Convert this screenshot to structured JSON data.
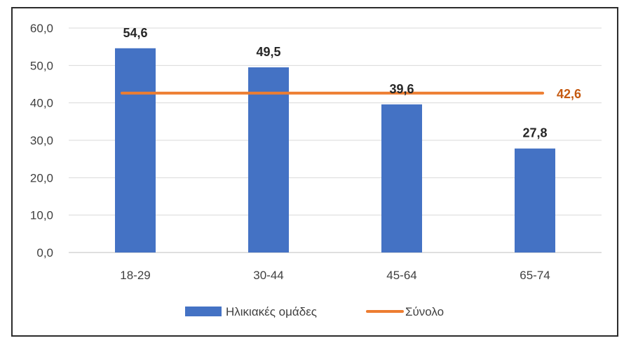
{
  "chart_data": {
    "type": "bar",
    "categories": [
      "18-29",
      "30-44",
      "45-64",
      "65-74"
    ],
    "series": [
      {
        "name": "Ηλικιακές ομάδες",
        "type": "bar",
        "values": [
          54.6,
          49.5,
          39.6,
          27.8
        ],
        "labels": [
          "54,6",
          "49,5",
          "39,6",
          "27,8"
        ]
      },
      {
        "name": "Σύνολο",
        "type": "line",
        "value": 42.6,
        "label": "42,6"
      }
    ],
    "y_ticks": [
      "0,0",
      "10,0",
      "20,0",
      "30,0",
      "40,0",
      "50,0",
      "60,0"
    ],
    "ylim": [
      0,
      60
    ],
    "grid": true,
    "legend_position": "bottom",
    "colors": {
      "bar": "#4472C4",
      "line": "#ED7D31",
      "line_label": "#C55A11",
      "grid": "#d9d9d9"
    }
  }
}
